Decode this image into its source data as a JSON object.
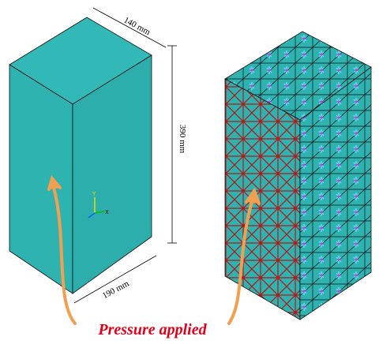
{
  "dimensions": {
    "depth": "140 mm",
    "height": "390 mm",
    "width": "190 mm"
  },
  "axes": {
    "y": "Y",
    "x": "X"
  },
  "annotation": "Pressure applied"
}
